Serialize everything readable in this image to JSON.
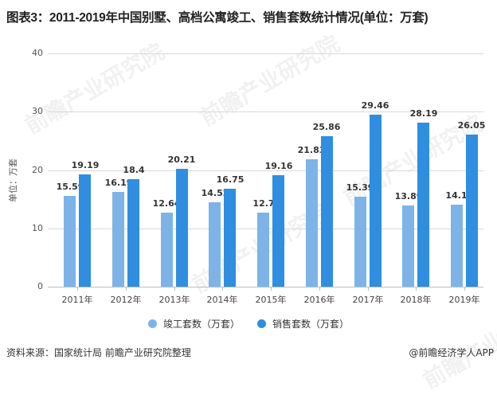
{
  "title": "图表3：2011-2019年中国别墅、高档公寓竣工、销售套数统计情况(单位：万套)",
  "y_axis_label": "单位：万套",
  "footer": {
    "source": "资料来源：国家统计局 前瞻产业研究院整理",
    "credit": "@前瞻经济学人APP"
  },
  "watermark": "前瞻产业研究院",
  "colors": {
    "completed": "#7eb3e8",
    "sold": "#2f8ee0"
  },
  "legend": [
    {
      "name": "竣工套数（万套）",
      "color": "#7eb3e8"
    },
    {
      "name": "销售套数（万套）",
      "color": "#2f8ee0"
    }
  ],
  "y_ticks": [
    "0",
    "10",
    "20",
    "30",
    "40"
  ],
  "chart_data": {
    "type": "bar",
    "title": "图表3：2011-2019年中国别墅、高档公寓竣工、销售套数统计情况(单位：万套)",
    "xlabel": "",
    "ylabel": "单位：万套",
    "ylim": [
      0,
      40
    ],
    "grid": true,
    "legend_position": "bottom",
    "categories": [
      "2011年",
      "2012年",
      "2013年",
      "2014年",
      "2015年",
      "2016年",
      "2017年",
      "2018年",
      "2019年"
    ],
    "series": [
      {
        "name": "竣工套数（万套）",
        "values": [
          15.59,
          16.19,
          12.64,
          14.52,
          12.7,
          21.83,
          15.39,
          13.89,
          14.1
        ]
      },
      {
        "name": "销售套数（万套）",
        "values": [
          19.19,
          18.4,
          20.21,
          16.75,
          19.16,
          25.86,
          29.46,
          28.19,
          26.05
        ]
      }
    ]
  }
}
